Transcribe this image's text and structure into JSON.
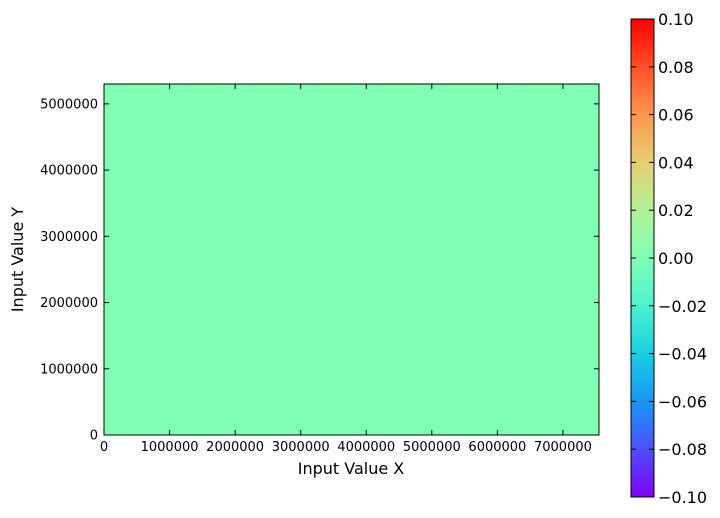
{
  "chart_data": {
    "type": "heatmap",
    "title": "",
    "xlabel": "Input Value X",
    "ylabel": "Input Value Y",
    "xlim": [
      0,
      7550000
    ],
    "ylim": [
      0,
      5300000
    ],
    "x_ticks": [
      0,
      1000000,
      2000000,
      3000000,
      4000000,
      5000000,
      6000000,
      7000000
    ],
    "x_tick_labels": [
      "0",
      "1000000",
      "2000000",
      "3000000",
      "4000000",
      "5000000",
      "6000000",
      "7000000"
    ],
    "y_ticks": [
      0,
      1000000,
      2000000,
      3000000,
      4000000,
      5000000
    ],
    "y_tick_labels": [
      "0",
      "1000000",
      "2000000",
      "3000000",
      "4000000",
      "5000000"
    ],
    "z": [
      [
        0.0
      ]
    ],
    "fill_color": "#80ffb4",
    "grid": false,
    "colorbar": {
      "colormap": "rainbow",
      "range": [
        -0.1,
        0.1
      ],
      "ticks": [
        0.1,
        0.08,
        0.06,
        0.04,
        0.02,
        0.0,
        -0.02,
        -0.04,
        -0.06,
        -0.08,
        -0.1
      ],
      "tick_labels": [
        "0.10",
        "0.08",
        "0.06",
        "0.04",
        "0.02",
        "0.00",
        "−0.02",
        "−0.04",
        "−0.06",
        "−0.08",
        "−0.10"
      ]
    }
  }
}
